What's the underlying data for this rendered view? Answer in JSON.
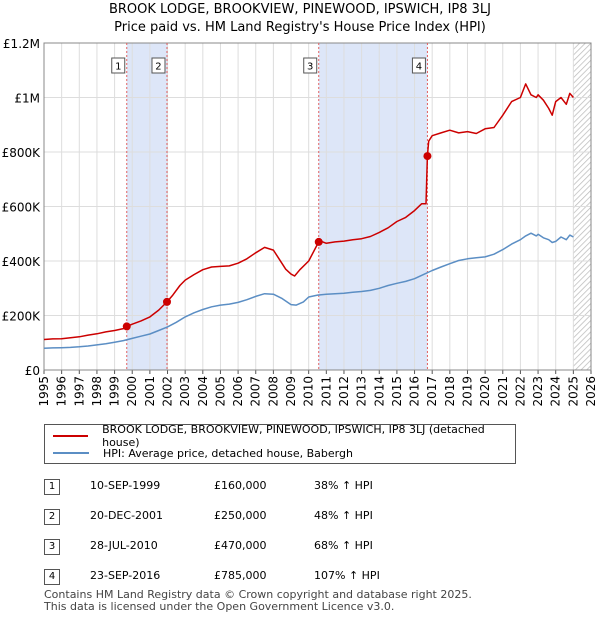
{
  "title": "BROOK LODGE, BROOKVIEW, PINEWOOD, IPSWICH, IP8 3LJ",
  "subtitle": "Price paid vs. HM Land Registry's House Price Index (HPI)",
  "colors": {
    "property": "#cc0000",
    "hpi": "#5b8ec4",
    "shade": "#dde6f8"
  },
  "chart_data": {
    "type": "line",
    "xlim": [
      1995,
      2026
    ],
    "ylim": [
      0,
      1200000
    ],
    "y_ticks": [
      {
        "value": 0,
        "label": "£0"
      },
      {
        "value": 200000,
        "label": "£200K"
      },
      {
        "value": 400000,
        "label": "£400K"
      },
      {
        "value": 600000,
        "label": "£600K"
      },
      {
        "value": 800000,
        "label": "£800K"
      },
      {
        "value": 1000000,
        "label": "£1M"
      },
      {
        "value": 1200000,
        "label": "£1.2M"
      }
    ],
    "x_ticks": [
      "1995",
      "1996",
      "1997",
      "1998",
      "1999",
      "2000",
      "2001",
      "2002",
      "2003",
      "2004",
      "2005",
      "2006",
      "2007",
      "2008",
      "2009",
      "2010",
      "2011",
      "2012",
      "2013",
      "2014",
      "2015",
      "2016",
      "2017",
      "2018",
      "2019",
      "2020",
      "2021",
      "2022",
      "2023",
      "2024",
      "2025",
      "2026"
    ],
    "shaded_ranges": [
      [
        1999.69,
        2001.97
      ],
      [
        2010.57,
        2016.73
      ]
    ],
    "future_from": 2025.0,
    "series": [
      {
        "name": "BROOK LODGE, BROOKVIEW, PINEWOOD, IPSWICH, IP8 3LJ (detached house)",
        "x": [
          1995,
          1995.5,
          1996,
          1996.5,
          1997,
          1997.5,
          1998,
          1998.5,
          1999,
          1999.5,
          1999.69,
          2000,
          2000.5,
          2001,
          2001.5,
          2001.97,
          2002.3,
          2002.7,
          2003,
          2003.5,
          2004,
          2004.5,
          2005,
          2005.5,
          2006,
          2006.5,
          2007,
          2007.5,
          2008,
          2008.3,
          2008.7,
          2009,
          2009.2,
          2009.5,
          2010,
          2010.57,
          2010.8,
          2011,
          2011.5,
          2012,
          2012.5,
          2013,
          2013.5,
          2014,
          2014.5,
          2015,
          2015.5,
          2016,
          2016.4,
          2016.65,
          2016.73,
          2016.8,
          2017,
          2017.5,
          2018,
          2018.5,
          2019,
          2019.5,
          2020,
          2020.5,
          2021,
          2021.5,
          2022,
          2022.3,
          2022.6,
          2022.9,
          2023,
          2023.3,
          2023.6,
          2023.8,
          2024,
          2024.3,
          2024.6,
          2024.8,
          2025
        ],
        "y": [
          112000,
          114000,
          115000,
          118000,
          122000,
          128000,
          133000,
          140000,
          145000,
          152000,
          160000,
          168000,
          180000,
          195000,
          220000,
          250000,
          275000,
          310000,
          330000,
          350000,
          368000,
          378000,
          380000,
          382000,
          392000,
          408000,
          430000,
          450000,
          440000,
          410000,
          370000,
          352000,
          345000,
          368000,
          400000,
          470000,
          470000,
          465000,
          470000,
          473000,
          478000,
          482000,
          490000,
          505000,
          522000,
          545000,
          560000,
          585000,
          610000,
          610000,
          785000,
          840000,
          860000,
          870000,
          880000,
          870000,
          875000,
          868000,
          885000,
          890000,
          935000,
          985000,
          1000000,
          1050000,
          1010000,
          1000000,
          1010000,
          990000,
          960000,
          935000,
          985000,
          1000000,
          975000,
          1015000,
          1000000
        ]
      },
      {
        "name": "HPI: Average price, detached house, Babergh",
        "x": [
          1995,
          1995.5,
          1996,
          1996.5,
          1997,
          1997.5,
          1998,
          1998.5,
          1999,
          1999.5,
          2000,
          2000.5,
          2001,
          2001.5,
          2002,
          2002.5,
          2003,
          2003.5,
          2004,
          2004.5,
          2005,
          2005.5,
          2006,
          2006.5,
          2007,
          2007.5,
          2008,
          2008.5,
          2009,
          2009.3,
          2009.7,
          2010,
          2010.5,
          2011,
          2011.5,
          2012,
          2012.5,
          2013,
          2013.5,
          2014,
          2014.5,
          2015,
          2015.5,
          2016,
          2016.5,
          2017,
          2017.5,
          2018,
          2018.5,
          2019,
          2019.5,
          2020,
          2020.5,
          2021,
          2021.5,
          2022,
          2022.3,
          2022.6,
          2022.9,
          2023,
          2023.3,
          2023.6,
          2023.8,
          2024,
          2024.3,
          2024.6,
          2024.8,
          2025
        ],
        "y": [
          80000,
          81000,
          82000,
          83000,
          85000,
          88000,
          92000,
          96000,
          102000,
          108000,
          116000,
          124000,
          132000,
          145000,
          158000,
          175000,
          195000,
          210000,
          222000,
          232000,
          238000,
          242000,
          248000,
          258000,
          270000,
          280000,
          278000,
          262000,
          240000,
          238000,
          250000,
          268000,
          275000,
          278000,
          280000,
          282000,
          285000,
          288000,
          292000,
          300000,
          310000,
          318000,
          325000,
          335000,
          350000,
          365000,
          378000,
          390000,
          402000,
          408000,
          412000,
          415000,
          425000,
          442000,
          462000,
          478000,
          492000,
          502000,
          492000,
          498000,
          485000,
          478000,
          468000,
          472000,
          488000,
          478000,
          495000,
          488000
        ]
      }
    ],
    "sales": [
      {
        "label": "1",
        "x": 1999.69,
        "y": 160000
      },
      {
        "label": "2",
        "x": 2001.97,
        "y": 250000
      },
      {
        "label": "3",
        "x": 2010.57,
        "y": 470000
      },
      {
        "label": "4",
        "x": 2016.73,
        "y": 785000
      }
    ]
  },
  "legend": {
    "property_label": "BROOK LODGE, BROOKVIEW, PINEWOOD, IPSWICH, IP8 3LJ (detached house)",
    "hpi_label": "HPI: Average price, detached house, Babergh"
  },
  "transactions": [
    {
      "num": "1",
      "date": "10-SEP-1999",
      "price": "£160,000",
      "hpi": "38% ↑ HPI"
    },
    {
      "num": "2",
      "date": "20-DEC-2001",
      "price": "£250,000",
      "hpi": "48% ↑ HPI"
    },
    {
      "num": "3",
      "date": "28-JUL-2010",
      "price": "£470,000",
      "hpi": "68% ↑ HPI"
    },
    {
      "num": "4",
      "date": "23-SEP-2016",
      "price": "£785,000",
      "hpi": "107% ↑ HPI"
    }
  ],
  "footer": {
    "line1": "Contains HM Land Registry data © Crown copyright and database right 2025.",
    "line2": "This data is licensed under the Open Government Licence v3.0."
  }
}
